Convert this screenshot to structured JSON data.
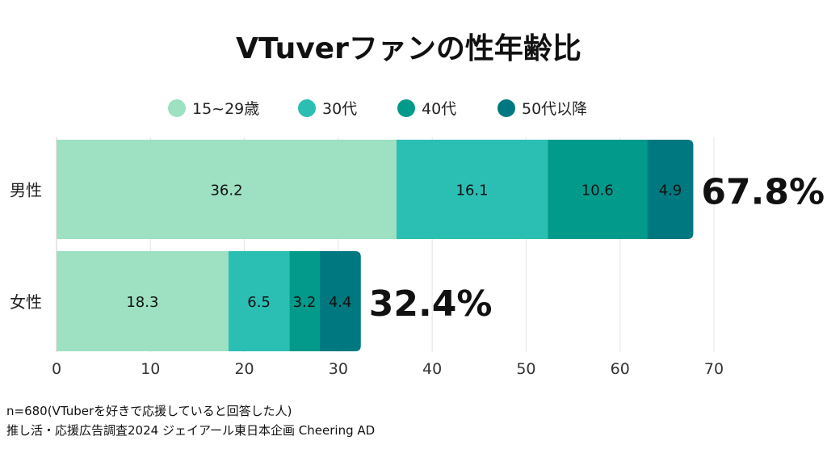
{
  "chart_data": {
    "type": "bar",
    "orientation": "horizontal",
    "stacked": true,
    "title": "VTuverファンの性年齢比",
    "categories": [
      "男性",
      "女性"
    ],
    "series": [
      {
        "name": "15~29歳",
        "values": [
          36.2,
          18.3
        ],
        "labels": [
          "36.2",
          "18.3"
        ],
        "color": "#9de0c2"
      },
      {
        "name": "30代",
        "values": [
          16.1,
          6.5
        ],
        "labels": [
          "16.1",
          "6.5"
        ],
        "color": "#2bbfb4"
      },
      {
        "name": "40代",
        "values": [
          10.6,
          3.2
        ],
        "labels": [
          "10.6",
          "3.2"
        ],
        "color": "#029a8b"
      },
      {
        "name": "50代以降",
        "values": [
          4.9,
          4.4
        ],
        "labels": [
          "4.9",
          "4.4"
        ],
        "color": "#00787f"
      }
    ],
    "totals": [
      "67.8%",
      "32.4%"
    ],
    "xlim": [
      0,
      70
    ],
    "xticks": [
      "0",
      "10",
      "20",
      "30",
      "40",
      "50",
      "60",
      "70"
    ],
    "grid": true,
    "legend_position": "top"
  },
  "footnotes": [
    "n=680(VTuberを好きで応援していると回答した人)",
    "推し活・応援広告調査2024 ジェイアール東日本企画 Cheering AD"
  ]
}
